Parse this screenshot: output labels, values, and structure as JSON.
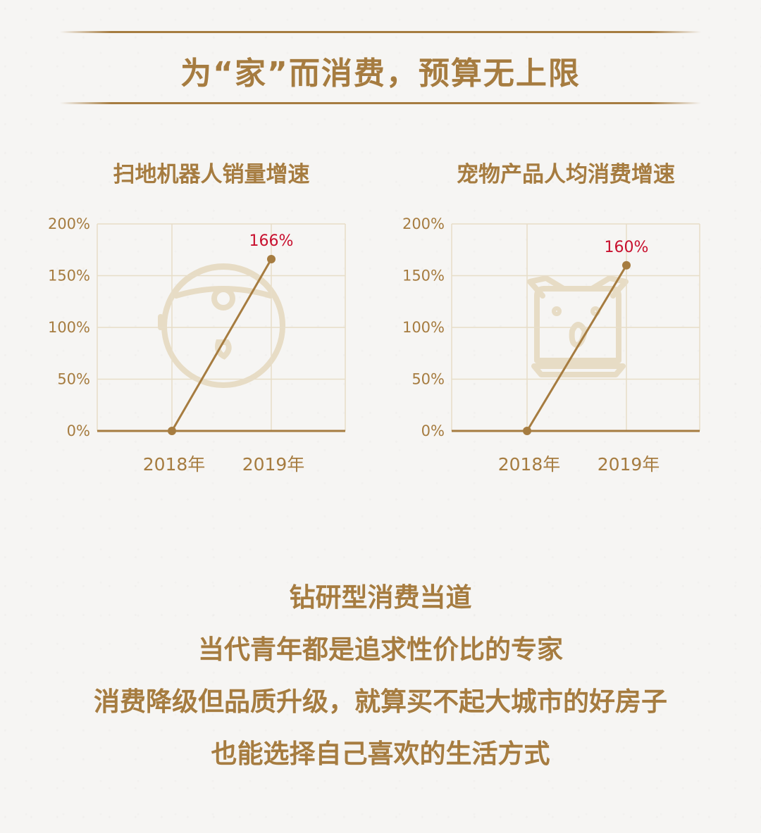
{
  "header": {
    "title": "为“家”而消费，预算无上限"
  },
  "colors": {
    "accent": "#a67c40",
    "grid": "#e7ddc8",
    "label_red": "#c8102e",
    "watermark": "#e7dcc5"
  },
  "chart_data": [
    {
      "type": "line",
      "title": "扫地机器人销量增速",
      "categories": [
        "2018年",
        "2019年"
      ],
      "values": [
        0,
        166
      ],
      "data_labels": [
        "",
        "166%"
      ],
      "yticks": [
        "0%",
        "50%",
        "100%",
        "150%",
        "200%"
      ],
      "ylim": [
        0,
        200
      ],
      "grid": true,
      "watermark_icon": "robot-vacuum-icon"
    },
    {
      "type": "line",
      "title": "宠物产品人均消费增速",
      "categories": [
        "2018年",
        "2019年"
      ],
      "values": [
        0,
        160
      ],
      "data_labels": [
        "",
        "160%"
      ],
      "yticks": [
        "0%",
        "50%",
        "100%",
        "150%",
        "200%"
      ],
      "ylim": [
        0,
        200
      ],
      "grid": true,
      "watermark_icon": "pet-dog-icon"
    }
  ],
  "body": {
    "lines": [
      "钻研型消费当道",
      "当代青年都是追求性价比的专家",
      "消费降级但品质升级，就算买不起大城市的好房子",
      "也能选择自己喜欢的生活方式"
    ]
  }
}
